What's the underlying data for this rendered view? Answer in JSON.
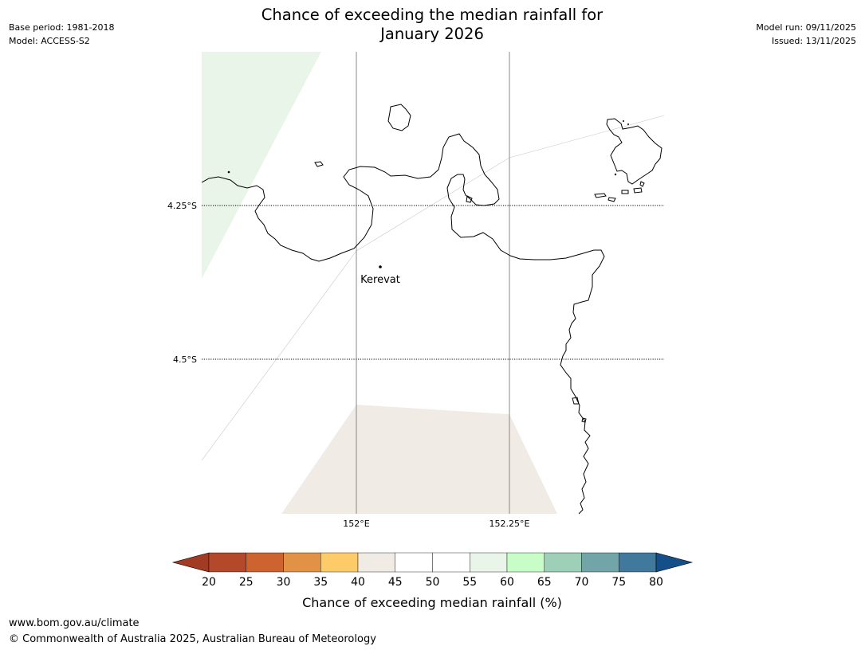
{
  "header": {
    "title_line1": "Chance of exceeding the median rainfall for",
    "title_line2": "January 2026",
    "left_meta": [
      "Base period: 1981-2018",
      "Model: ACCESS-S2"
    ],
    "right_meta": [
      "Model run: 09/11/2025",
      "Issued: 13/11/2025"
    ]
  },
  "map": {
    "latitude_labels": [
      "4.25°S",
      "4.5°S"
    ],
    "longitude_labels": [
      "152°E",
      "152.25°E"
    ],
    "places": [
      {
        "name": "Kerevat"
      }
    ],
    "probability_fill_colors": {
      "55-60": "#e9f5e9",
      "40-45": "#f0ebe5"
    }
  },
  "colorbar": {
    "tick_labels": [
      "20",
      "25",
      "30",
      "35",
      "40",
      "45",
      "50",
      "55",
      "60",
      "65",
      "70",
      "75",
      "80"
    ],
    "segment_colors": [
      "#a23b24",
      "#b3482a",
      "#cd6430",
      "#e29244",
      "#fecb69",
      "#f0ebe5",
      "#ffffff",
      "#ffffff",
      "#e9f5e9",
      "#c8fdc8",
      "#9ecfb8",
      "#71a5a7",
      "#40799b",
      "#154f89"
    ],
    "label": "Chance of exceeding median rainfall (%)"
  },
  "footer": {
    "url": "www.bom.gov.au/climate",
    "copyright": "© Commonwealth of Australia 2025, Australian Bureau of Meteorology"
  }
}
